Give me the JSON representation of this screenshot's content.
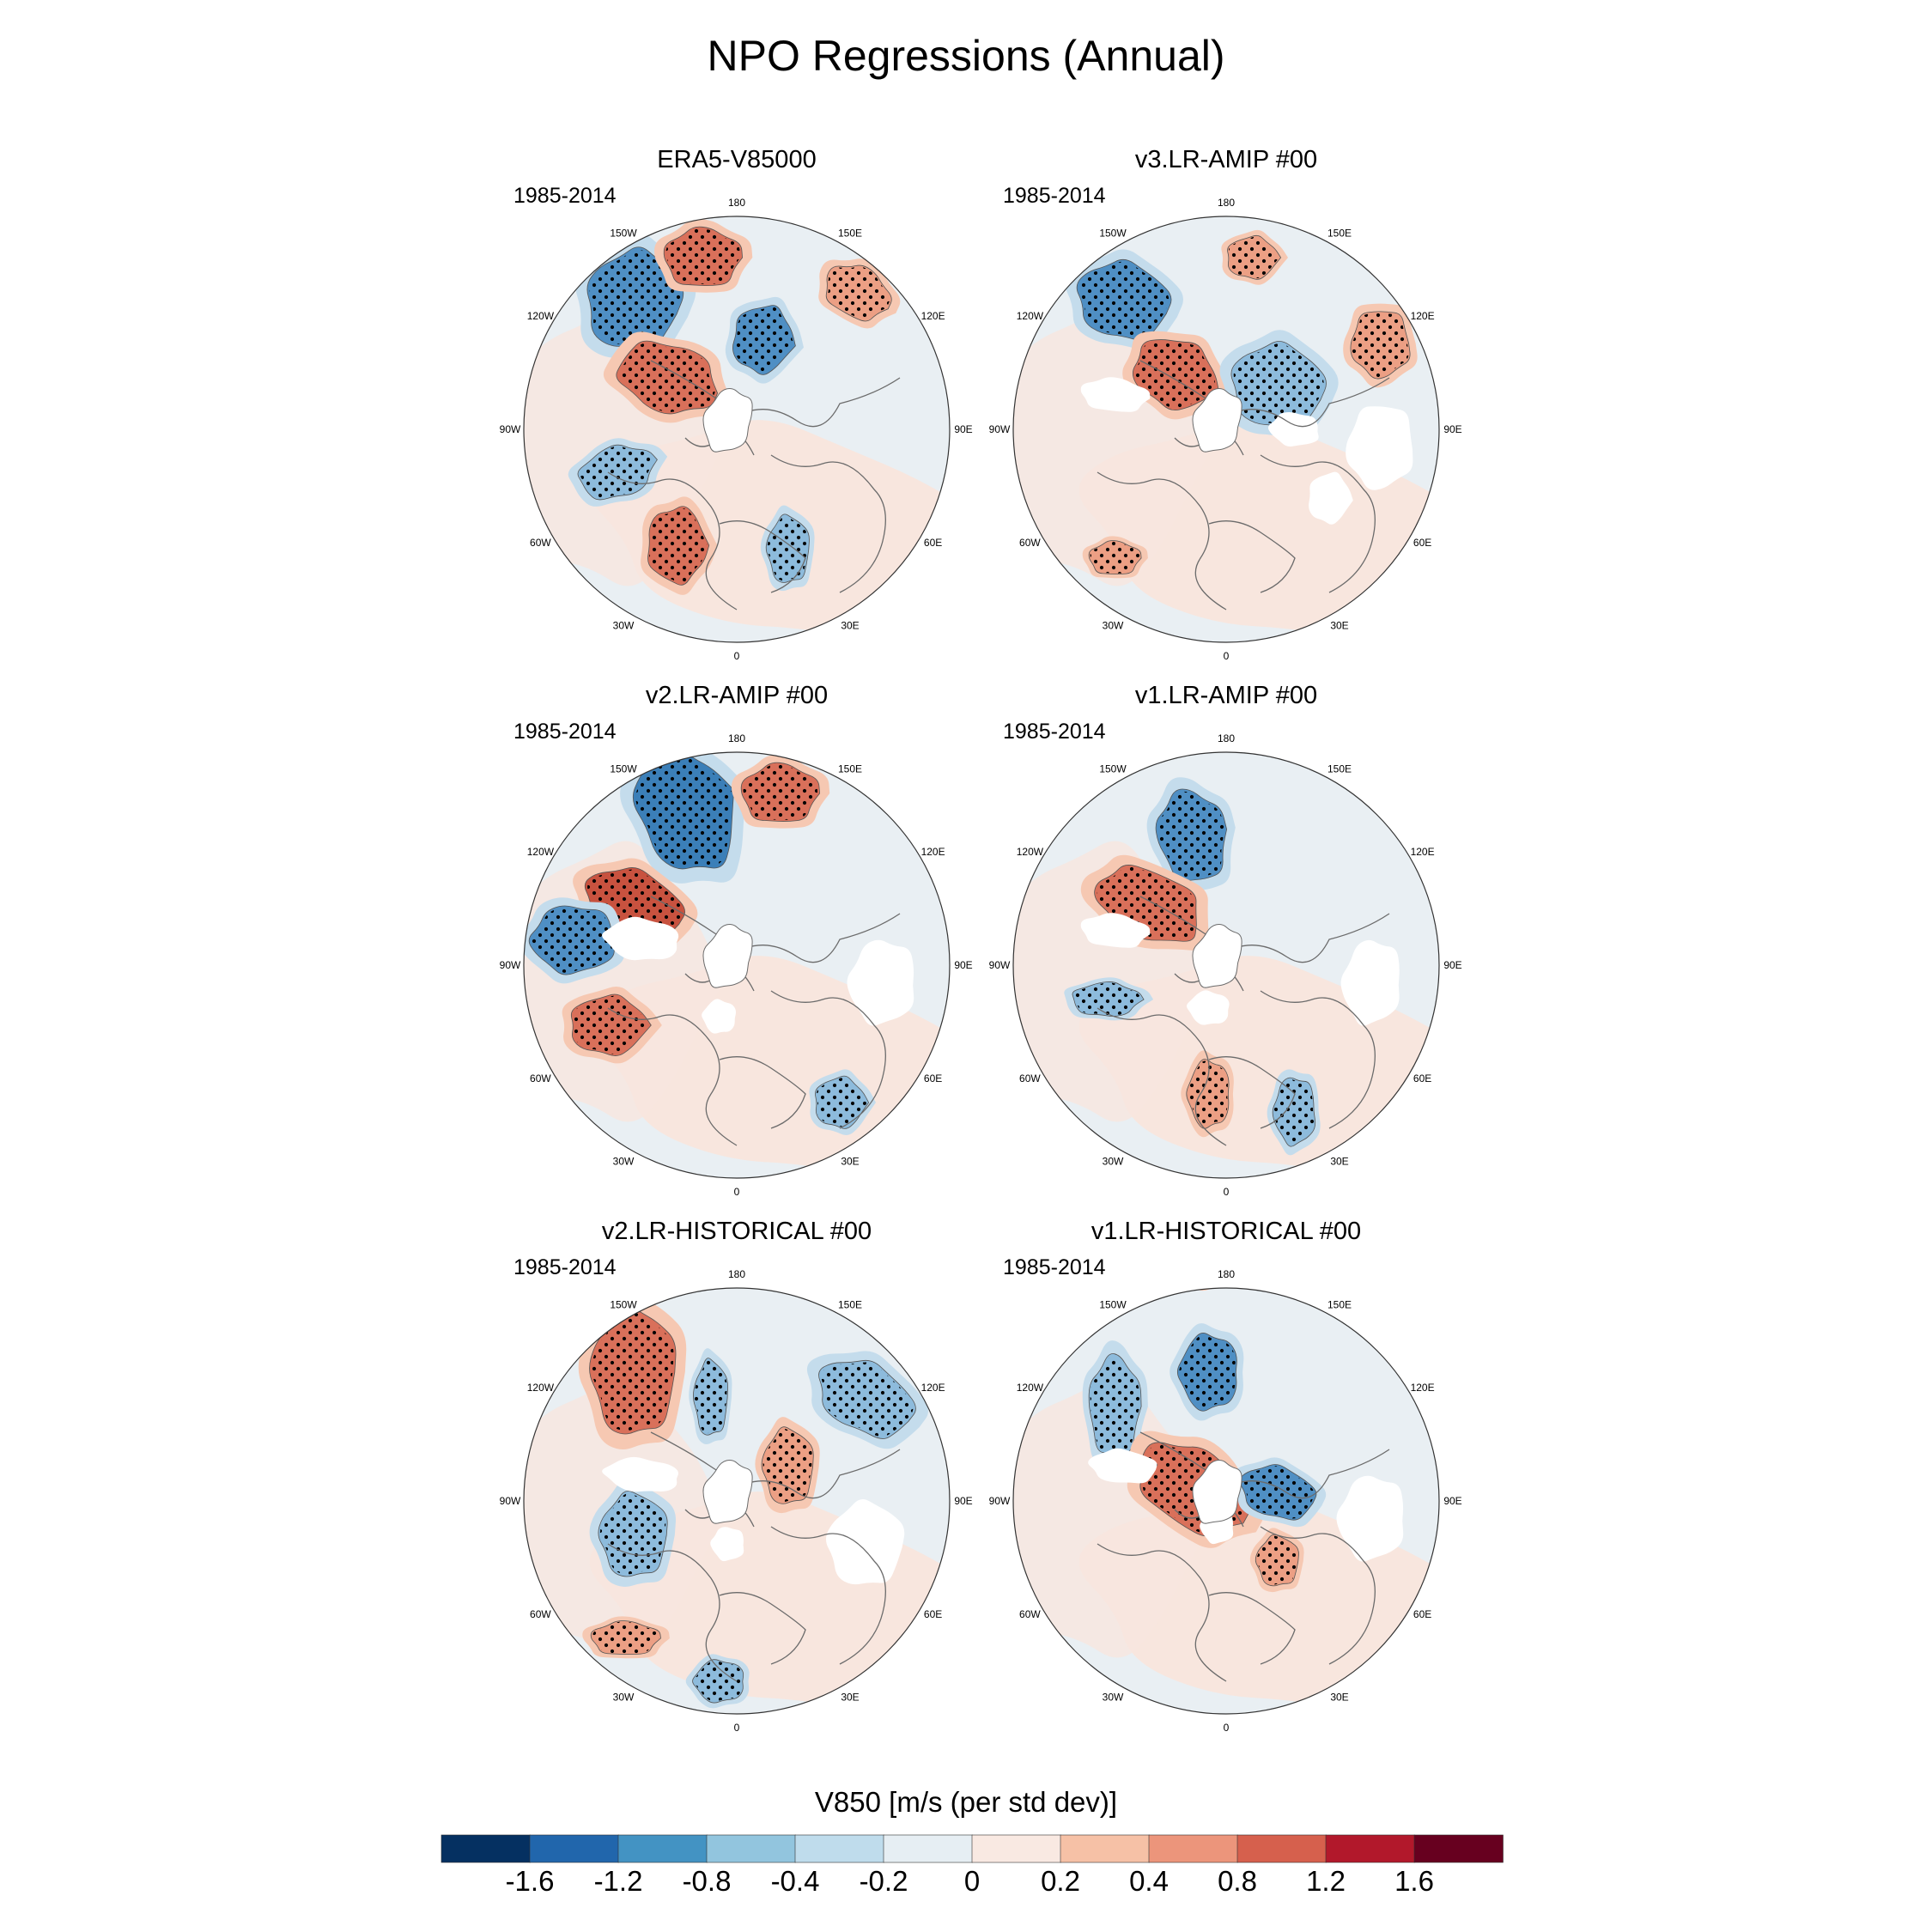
{
  "title": "NPO Regressions (Annual)",
  "period": "1985-2014",
  "lon_labels": [
    "180",
    "150E",
    "120E",
    "90E",
    "60E",
    "30E",
    "0",
    "30W",
    "60W",
    "90W",
    "120W",
    "150W"
  ],
  "panels": [
    {
      "title": "ERA5-V85000"
    },
    {
      "title": "v3.LR-AMIP  #00"
    },
    {
      "title": "v2.LR-AMIP  #00"
    },
    {
      "title": "v1.LR-AMIP  #00"
    },
    {
      "title": "v2.LR-HISTORICAL  #00"
    },
    {
      "title": "v1.LR-HISTORICAL  #00"
    }
  ],
  "colorbar": {
    "title": "V850 [m/s (per std dev)]",
    "labels": [
      "-1.6",
      "-1.2",
      "-0.8",
      "-0.4",
      "-0.2",
      "0",
      "0.2",
      "0.4",
      "0.8",
      "1.2",
      "1.6"
    ],
    "colors": [
      "#053061",
      "#2166ac",
      "#4393c3",
      "#92c5de",
      "#bfdcec",
      "#e6eef3",
      "#f9e9e2",
      "#f6c1a6",
      "#ec957b",
      "#d6604d",
      "#b2182b",
      "#67001f"
    ]
  },
  "colors": {
    "background": "#e9eff3",
    "warm_bg": "#f8e6de",
    "coast": "#6b6b6b",
    "blue_strong": "#4f8fc4",
    "blue_mid": "#8dbbdc",
    "blue_light": "#c4dcec",
    "red_strong": "#d9705a",
    "red_mid": "#ec9f84",
    "red_light": "#f6c8b2"
  }
}
